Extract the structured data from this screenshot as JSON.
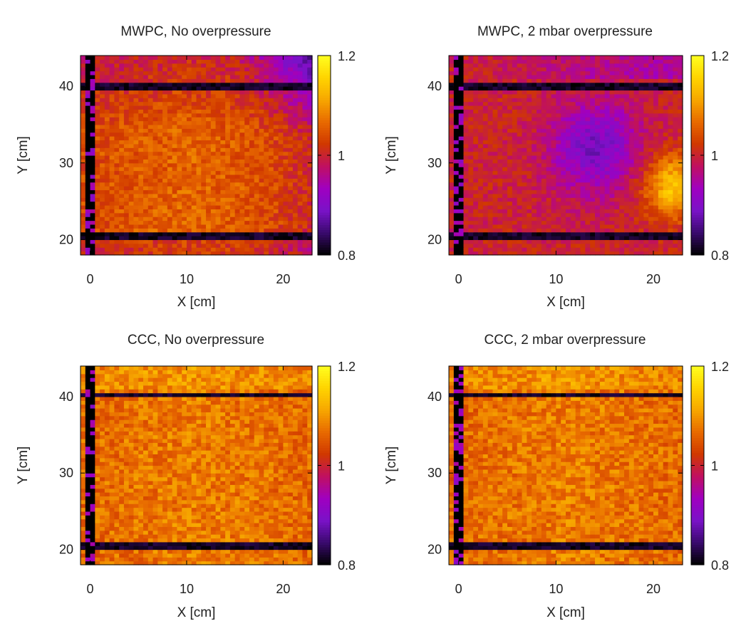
{
  "figure": {
    "colormap": [
      "#000000",
      "#3a0a6e",
      "#7a12c8",
      "#a000c0",
      "#c01060",
      "#d03800",
      "#e86a00",
      "#f7a700",
      "#ffd400",
      "#ffff20"
    ]
  },
  "chart_data": [
    {
      "type": "heatmap",
      "title": "MWPC, No overpressure",
      "xlabel": "X [cm]",
      "ylabel": "Y [cm]",
      "xlim": [
        -1,
        23
      ],
      "ylim": [
        18,
        44
      ],
      "xticks": [
        "0",
        "10",
        "20"
      ],
      "yticks": [
        "20",
        "30",
        "40"
      ],
      "colorbar": {
        "range": [
          0.8,
          1.2
        ],
        "ticks": [
          "0.8",
          "1",
          "1.2"
        ]
      },
      "pattern": "bright centre, dimmer top-right corner",
      "dead_bands_y": [
        [
          20.0,
          21.0
        ],
        [
          39.5,
          40.5
        ]
      ],
      "dead_column_x": [
        -0.5,
        0.3
      ],
      "grid": false
    },
    {
      "type": "heatmap",
      "title": "MWPC, 2 mbar overpressure",
      "xlabel": "X [cm]",
      "ylabel": "Y [cm]",
      "xlim": [
        -1,
        23
      ],
      "ylim": [
        18,
        44
      ],
      "xticks": [
        "0",
        "10",
        "20"
      ],
      "yticks": [
        "20",
        "30",
        "40"
      ],
      "colorbar": {
        "range": [
          0.8,
          1.2
        ],
        "ticks": [
          "0.8",
          "1",
          "1.2"
        ]
      },
      "pattern": "low-gain region around X=14, Y=32; high-gain region at X=20-23, Y=23-31",
      "dead_bands_y": [
        [
          20.0,
          21.0
        ],
        [
          39.5,
          40.5
        ]
      ],
      "dead_column_x": [
        -0.5,
        0.3
      ],
      "grid": false
    },
    {
      "type": "heatmap",
      "title": "CCC, No overpressure",
      "xlabel": "X [cm]",
      "ylabel": "Y [cm]",
      "xlim": [
        -1,
        23
      ],
      "ylim": [
        18,
        44
      ],
      "xticks": [
        "0",
        "10",
        "20"
      ],
      "yticks": [
        "20",
        "30",
        "40"
      ],
      "colorbar": {
        "range": [
          0.8,
          1.2
        ],
        "ticks": [
          "0.8",
          "1",
          "1.2"
        ]
      },
      "pattern": "uniform, bright",
      "dead_bands_y": [
        [
          20.2,
          21.0
        ],
        [
          40.0,
          40.7
        ]
      ],
      "dead_column_x": [
        -0.5,
        0.3
      ],
      "grid": false
    },
    {
      "type": "heatmap",
      "title": "CCC, 2 mbar overpressure",
      "xlabel": "X [cm]",
      "ylabel": "Y [cm]",
      "xlim": [
        -1,
        23
      ],
      "ylim": [
        18,
        44
      ],
      "xticks": [
        "0",
        "10",
        "20"
      ],
      "yticks": [
        "20",
        "30",
        "40"
      ],
      "colorbar": {
        "range": [
          0.8,
          1.2
        ],
        "ticks": [
          "0.8",
          "1",
          "1.2"
        ]
      },
      "pattern": "uniform, bright",
      "dead_bands_y": [
        [
          20.2,
          21.0
        ],
        [
          40.0,
          40.7
        ]
      ],
      "dead_column_x": [
        -0.5,
        0.3
      ],
      "grid": false
    }
  ]
}
